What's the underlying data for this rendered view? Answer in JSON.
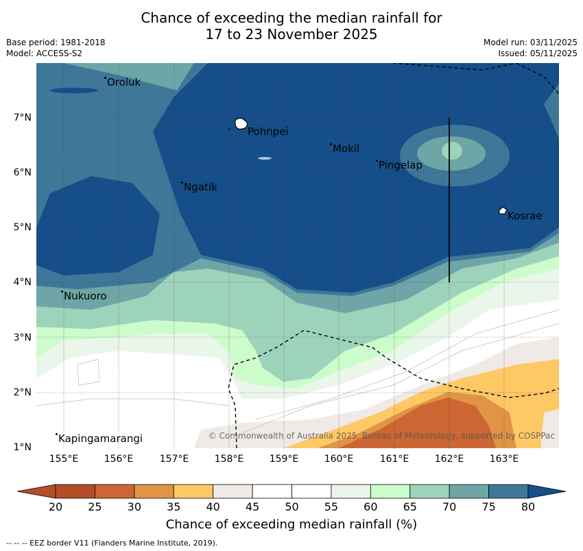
{
  "title": {
    "line1": "Chance of exceeding the median rainfall for",
    "line2": "17 to 23 November 2025"
  },
  "meta": {
    "base_period": "Base period: 1981-2018",
    "model": "Model: ACCESS-S2",
    "model_run": "Model run: 03/11/2025",
    "issued": "Issued: 05/11/2025"
  },
  "axes": {
    "lat_ticks": [
      "7°N",
      "6°N",
      "5°N",
      "4°N",
      "3°N",
      "2°N",
      "1°N"
    ],
    "lon_ticks": [
      "155°E",
      "156°E",
      "157°E",
      "158°E",
      "159°E",
      "160°E",
      "161°E",
      "162°E",
      "163°E"
    ]
  },
  "places": {
    "oroluk": "Oroluk",
    "pohnpei": "Pohnpei",
    "mokil": "Mokil",
    "pingelap": "Pingelap",
    "ngatik": "Ngatik",
    "kosrae": "Kosrae",
    "nukuoro": "Nukuoro",
    "kapingamarangi": "Kapingamarangi"
  },
  "copyright": "© Commonwealth of Australia 2025, Bureau of Meteorology, supported by COSPPac",
  "colorbar": {
    "labels": [
      "20",
      "25",
      "30",
      "35",
      "40",
      "45",
      "50",
      "55",
      "60",
      "65",
      "70",
      "75",
      "80"
    ],
    "title": "Chance of exceeding median rainfall (%)",
    "colors": [
      "#b34e28",
      "#cc6633",
      "#e09445",
      "#fec965",
      "#efeae6",
      "#ffffff",
      "#ffffff",
      "#ebf6ea",
      "#ccfccc",
      "#9ed3bb",
      "#6ea5a6",
      "#3f7799"
    ],
    "low_extend": "#b34e28",
    "high_extend": "#154e89"
  },
  "footnote": "--  --  -- EEZ border V11 (Flanders Marine Institute, 2019)."
}
